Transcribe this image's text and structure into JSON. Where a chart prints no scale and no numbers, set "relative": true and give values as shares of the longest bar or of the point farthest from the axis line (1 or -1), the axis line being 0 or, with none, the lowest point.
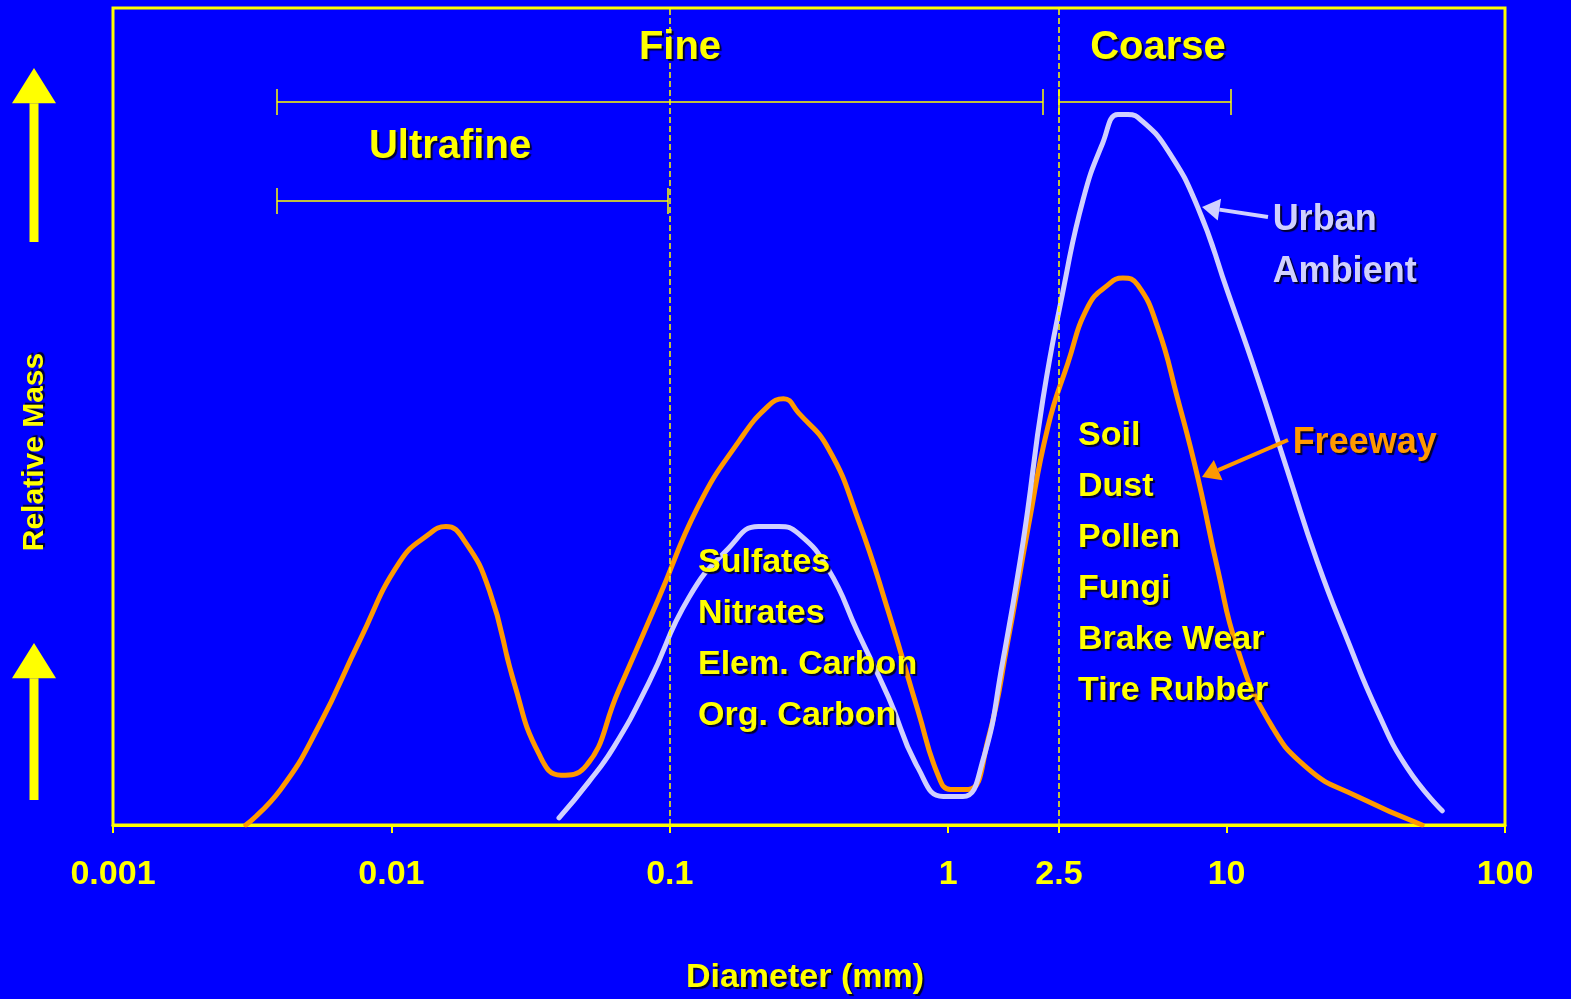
{
  "chart_data": {
    "type": "line",
    "relative": true,
    "xlabel": "Diameter (mm)",
    "ylabel": "Relative Mass",
    "log": "x",
    "grid": false,
    "legend": "right",
    "marker": "none",
    "line_style": "solid",
    "xlim": [
      0.001,
      100
    ],
    "xticks": [
      0.001,
      0.01,
      0.1,
      1,
      2.5,
      10,
      100
    ],
    "series": [
      {
        "name": "Freeway",
        "color": "#ff9900",
        "x": [
          0.003,
          0.004,
          0.0055,
          0.0077,
          0.0107,
          0.0137,
          0.0157,
          0.0183,
          0.0225,
          0.0276,
          0.0339,
          0.0407,
          0.0492,
          0.0656,
          0.0914,
          0.127,
          0.177,
          0.226,
          0.256,
          0.29,
          0.371,
          0.475,
          0.61,
          0.78,
          0.92,
          1.02,
          1.18,
          1.39,
          1.64,
          1.94,
          2.28,
          2.69,
          3.18,
          3.74,
          4.24,
          4.8,
          5.66,
          6.67,
          7.87,
          9.29,
          10.9,
          14.0,
          19.5,
          29.5,
          50.4
        ],
        "values": [
          0,
          0.05,
          0.14,
          0.26,
          0.37,
          0.41,
          0.42,
          0.4,
          0.33,
          0.2,
          0.1,
          0.07,
          0.08,
          0.19,
          0.32,
          0.45,
          0.54,
          0.59,
          0.6,
          0.58,
          0.53,
          0.43,
          0.3,
          0.16,
          0.07,
          0.05,
          0.05,
          0.12,
          0.26,
          0.42,
          0.56,
          0.65,
          0.73,
          0.76,
          0.77,
          0.76,
          0.7,
          0.6,
          0.49,
          0.36,
          0.25,
          0.15,
          0.08,
          0.04,
          0
        ]
      },
      {
        "name": "Urban Ambient",
        "color": "#d0d0ff",
        "x": [
          0.04,
          0.051,
          0.063,
          0.084,
          0.117,
          0.163,
          0.208,
          0.246,
          0.29,
          0.371,
          0.475,
          0.61,
          0.78,
          0.96,
          1.13,
          1.33,
          1.57,
          1.86,
          2.19,
          2.58,
          3.05,
          3.59,
          4.07,
          4.42,
          5.0,
          6.14,
          7.87,
          10.1,
          12.9,
          16.5,
          21.2,
          27.2,
          34.8,
          44.6,
          59.5
        ],
        "values": [
          0.01,
          0.06,
          0.11,
          0.2,
          0.32,
          0.39,
          0.42,
          0.42,
          0.41,
          0.36,
          0.27,
          0.18,
          0.08,
          0.04,
          0.04,
          0.09,
          0.23,
          0.4,
          0.6,
          0.75,
          0.88,
          0.96,
          1.0,
          1,
          0.99,
          0.95,
          0.87,
          0.75,
          0.63,
          0.5,
          0.37,
          0.26,
          0.16,
          0.08,
          0.02
        ]
      }
    ],
    "ref_lines": [
      {
        "axis": "x",
        "value": 0.1,
        "color": "#ffff00",
        "line_style": "dashed"
      },
      {
        "axis": "x",
        "value": 2.5,
        "color": "#ffff00",
        "line_style": "dashed"
      }
    ],
    "annotations": [
      "Fine",
      "Coarse",
      "Ultrafine",
      "Sulfates\nNitrates\nElem. Carbon\nOrg. Carbon",
      "Soil\nDust\nPollen\nFungi\nBrake Wear\nTire Rubber"
    ]
  }
}
